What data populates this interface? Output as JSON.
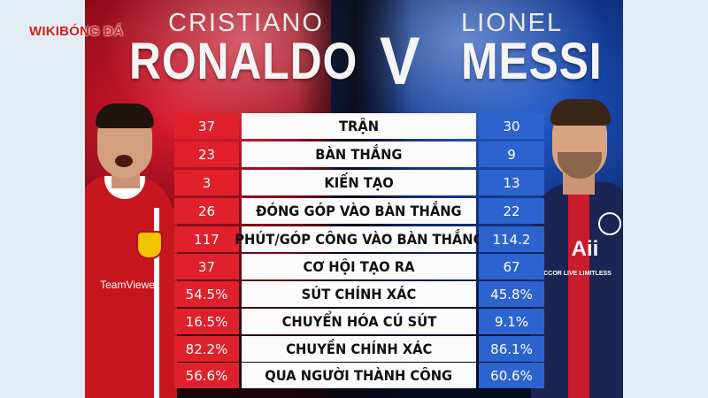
{
  "header": {
    "left_first_name": "CRISTIANO",
    "left_last_name": "RONALDO",
    "versus": "V",
    "right_first_name": "LIONEL",
    "right_last_name": "MESSI"
  },
  "logo": {
    "text": "WIKIBÓNG ĐÁ"
  },
  "sponsors": {
    "ronaldo_shirt": "TeamViewer",
    "messi_shirt_brand": "Aii",
    "messi_shirt_line": "ACCOR LIVE LIMITLESS"
  },
  "colors": {
    "ronaldo": "#e0212b",
    "messi": "#2d63cf",
    "label_bg": "#fbfbfb"
  },
  "stats": [
    {
      "label": "TRẬN",
      "ronaldo": "37",
      "messi": "30"
    },
    {
      "label": "BÀN THẮNG",
      "ronaldo": "23",
      "messi": "9"
    },
    {
      "label": "KIẾN TẠO",
      "ronaldo": "3",
      "messi": "13"
    },
    {
      "label": "ĐÓNG GÓP VÀO BÀN THẮNG",
      "ronaldo": "26",
      "messi": "22"
    },
    {
      "label": "PHÚT/GÓP CÔNG VÀO BÀN THẮNG",
      "ronaldo": "117",
      "messi": "114.2"
    },
    {
      "label": "CƠ HỘI TẠO RA",
      "ronaldo": "37",
      "messi": "67"
    },
    {
      "label": "SÚT CHÍNH XÁC",
      "ronaldo": "54.5%",
      "messi": "45.8%"
    },
    {
      "label": "CHUYỂN HÓA CÚ SÚT",
      "ronaldo": "16.5%",
      "messi": "9.1%"
    },
    {
      "label": "CHUYỀN CHÍNH XÁC",
      "ronaldo": "82.2%",
      "messi": "86.1%"
    },
    {
      "label": "QUA NGƯỜI THÀNH CÔNG",
      "ronaldo": "56.6%",
      "messi": "60.6%"
    }
  ]
}
